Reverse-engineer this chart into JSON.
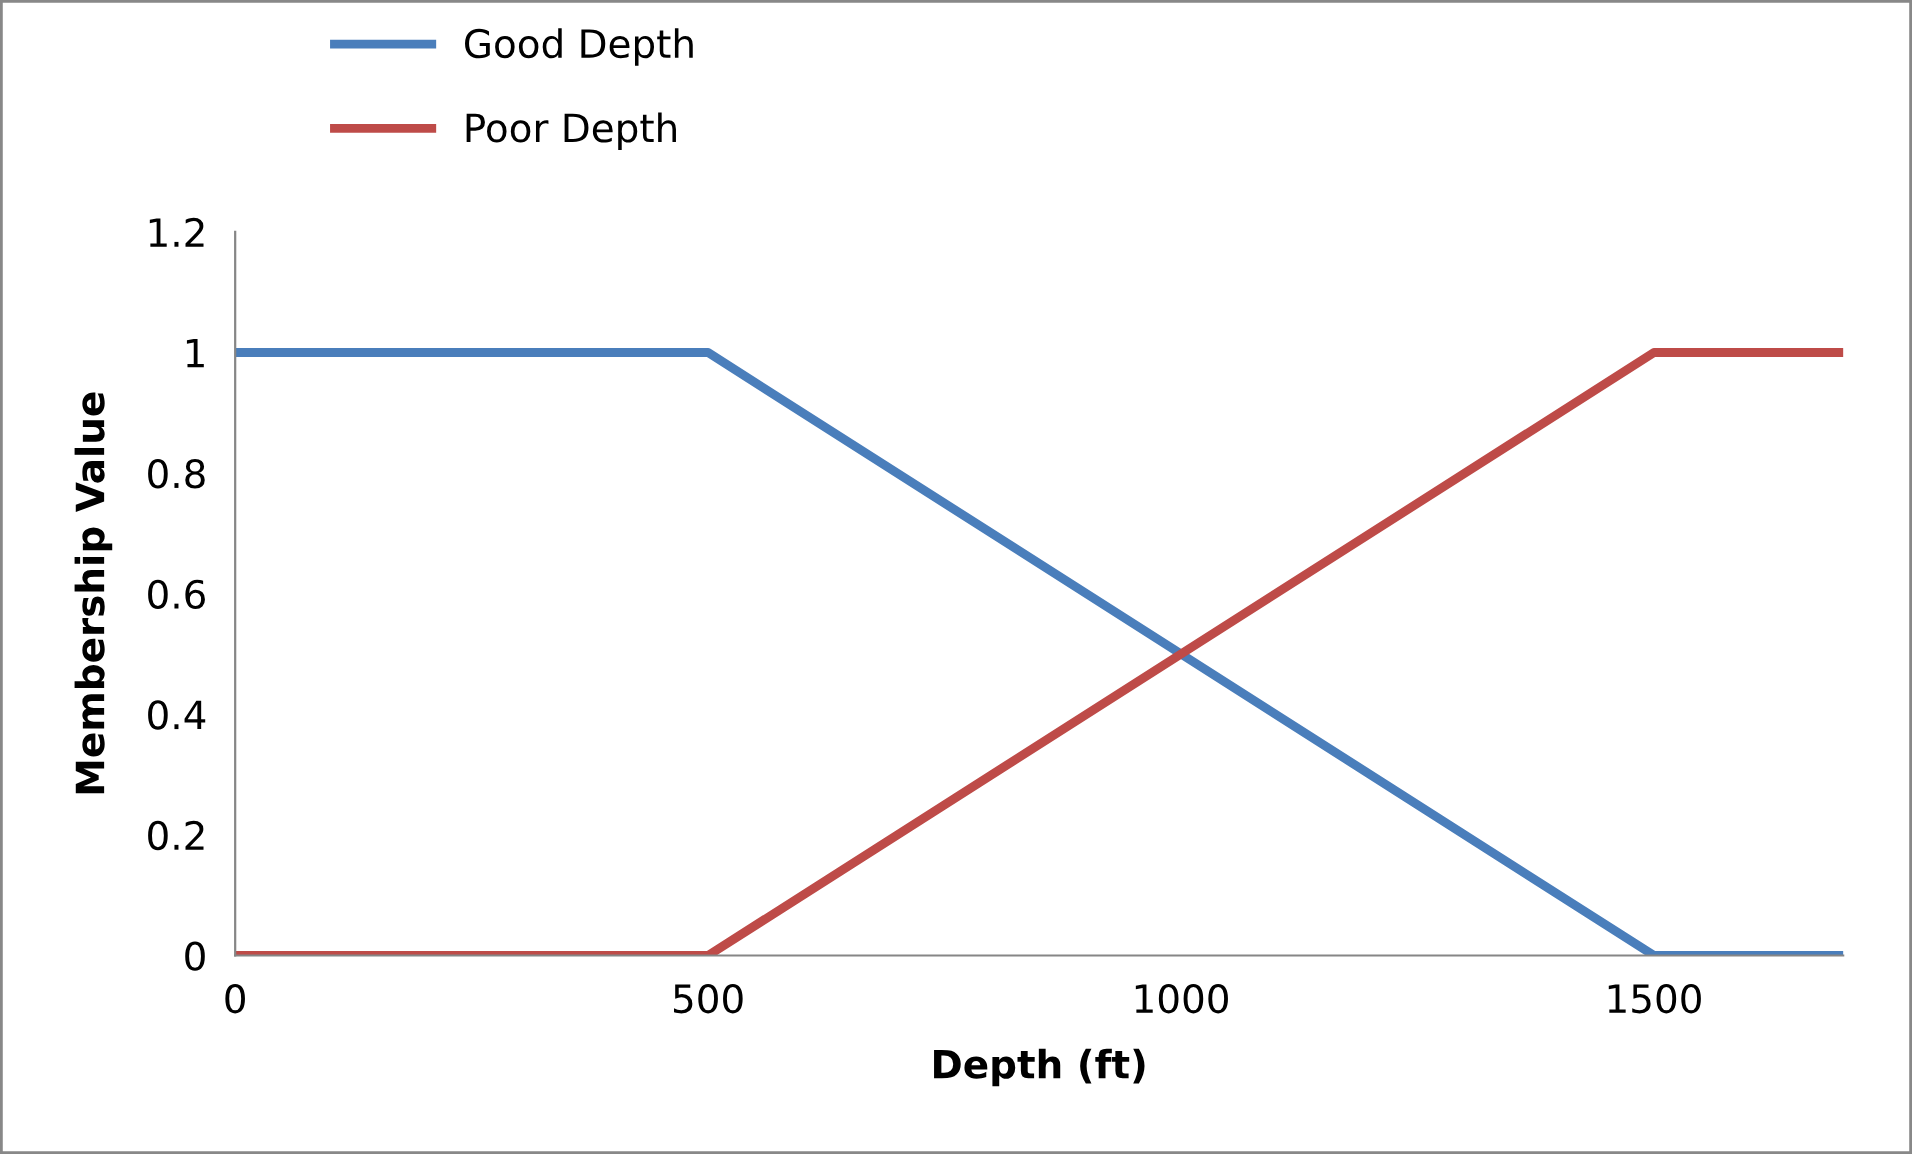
{
  "chart_data": {
    "type": "line",
    "xlabel": "Depth (ft)",
    "ylabel": "Membership Value",
    "x": [
      0,
      500,
      1500,
      1700
    ],
    "series": [
      {
        "name": "Good Depth",
        "color": "#4a7ebb",
        "values": [
          1,
          1,
          0,
          0
        ]
      },
      {
        "name": "Poor Depth",
        "color": "#be4b48",
        "values": [
          0,
          0,
          1,
          1
        ]
      }
    ],
    "xlim": [
      0,
      1700
    ],
    "xticks": [
      0,
      500,
      1000,
      1500
    ],
    "ylim": [
      0,
      1.2
    ],
    "yticks": [
      0,
      0.2,
      0.4,
      0.6,
      0.8,
      1,
      1.2
    ],
    "grid": false,
    "legend": "top left",
    "marker": "none",
    "line_style": "solid"
  }
}
